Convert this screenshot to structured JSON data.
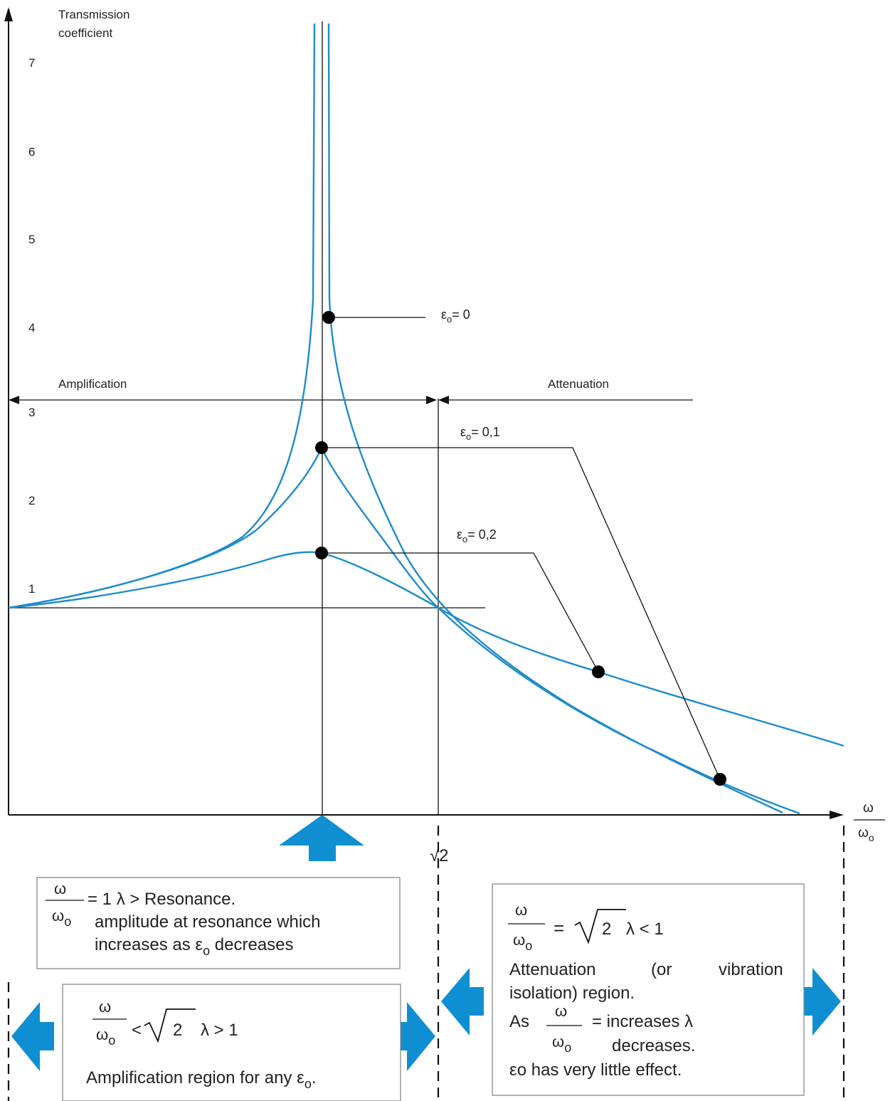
{
  "colors": {
    "curve": "#1d8ccd",
    "arrow_fill": "#0f8fd2",
    "line": "#111111",
    "box_border": "#888888"
  },
  "axes": {
    "y_title_line1": "Transmission",
    "y_title_line2": "coefficient",
    "x_label_num": "ω",
    "x_label_den_base": "ω",
    "x_label_den_sub": "o",
    "y_ticks": [
      "1",
      "2",
      "3",
      "4",
      "5",
      "6",
      "7"
    ],
    "sqrt2_label": "√2"
  },
  "regions": {
    "amplification": "Amplification",
    "attenuation": "Attenuation"
  },
  "curve_labels": [
    {
      "base": "ε",
      "sub": "o",
      "rest": "= 0"
    },
    {
      "base": "ε",
      "sub": "o",
      "rest": "= 0,1"
    },
    {
      "base": "ε",
      "sub": "o",
      "rest": "= 0,2"
    }
  ],
  "boxes": {
    "resonance": {
      "frac_num": "ω",
      "frac_den_base": "ω",
      "frac_den_sub": "o",
      "equation_rest": "= 1 λ > Resonance.",
      "line2": "amplitude at resonance which",
      "line3_text": "increases as ε",
      "line3_sub": "o",
      "line3_end": " decreases"
    },
    "amplification": {
      "frac_num": "ω",
      "frac_den_base": "ω",
      "frac_den_sub": "o",
      "lt": "<",
      "radicand": "2",
      "relation": "λ > 1",
      "body_text": "Amplification region for any ε",
      "body_sub": "o",
      "body_end": "."
    },
    "attenuation": {
      "frac_num": "ω",
      "frac_den_base": "ω",
      "frac_den_sub": "o",
      "eq": "=",
      "radicand": "2",
      "relation": "λ < 1",
      "line1a": "Attenuation",
      "line1b": "(or",
      "line1c": "vibration",
      "line2": "isolation) region.",
      "as_word": "As",
      "as_rest": "= increases λ",
      "decreases": "decreases.",
      "last": "εo has very little effect."
    }
  }
}
